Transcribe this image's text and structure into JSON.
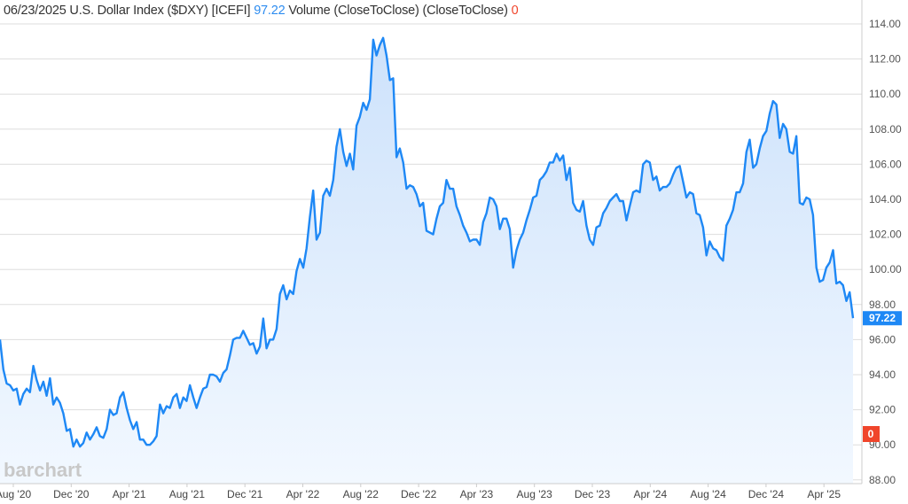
{
  "header": {
    "date": "06/23/2025",
    "name": "U.S. Dollar Index ($DXY) [ICEFI]",
    "last": "97.22",
    "study": "Volume (CloseToClose)  (CloseToClose)",
    "volume": "0"
  },
  "watermark": "barchart",
  "colors": {
    "line": "#1e88f5",
    "fill_top": "#cde2fb",
    "fill_bottom": "#f2f8ff",
    "price_tag": "#1e88f5",
    "volume_tag": "#f0452b",
    "grid": "#dddddd"
  },
  "chart_data": {
    "type": "area",
    "title": "U.S. Dollar Index ($DXY)",
    "xlabel": "",
    "ylabel": "",
    "ylim": [
      88,
      114
    ],
    "y_ticks": [
      "114.00",
      "112.00",
      "110.00",
      "108.00",
      "106.00",
      "104.00",
      "102.00",
      "100.00",
      "98.00",
      "96.00",
      "94.00",
      "92.00",
      "90.00",
      "88.00"
    ],
    "x_ticks": [
      "Aug '20",
      "Dec '20",
      "Apr '21",
      "Aug '21",
      "Dec '21",
      "Apr '22",
      "Aug '22",
      "Dec '22",
      "Apr '23",
      "Aug '23",
      "Dec '23",
      "Apr '24",
      "Aug '24",
      "Dec '24",
      "Apr '25"
    ],
    "x_range": [
      "2020-07",
      "2025-06-23"
    ],
    "frequency": "weekly",
    "last_value_label": "97.22",
    "volume_label": "0",
    "grid": true,
    "values": [
      96.0,
      94.3,
      93.5,
      93.4,
      93.1,
      93.2,
      92.3,
      92.9,
      93.2,
      93.0,
      94.5,
      93.7,
      93.1,
      93.6,
      92.8,
      93.8,
      92.3,
      92.7,
      92.4,
      91.8,
      90.8,
      90.9,
      89.9,
      90.3,
      89.9,
      90.1,
      90.7,
      90.3,
      90.6,
      91.0,
      90.5,
      90.4,
      90.9,
      92.0,
      91.7,
      91.8,
      92.7,
      93.0,
      92.1,
      91.4,
      90.9,
      91.3,
      90.3,
      90.3,
      90.0,
      90.0,
      90.2,
      90.5,
      92.3,
      91.8,
      92.2,
      92.1,
      92.7,
      92.9,
      92.1,
      92.7,
      92.5,
      93.4,
      92.7,
      92.1,
      92.7,
      93.2,
      93.3,
      94.0,
      94.0,
      93.9,
      93.6,
      94.1,
      94.3,
      95.1,
      96.0,
      96.1,
      96.1,
      96.5,
      96.1,
      95.7,
      95.8,
      95.2,
      95.6,
      97.2,
      95.5,
      96.0,
      96.0,
      96.6,
      98.6,
      99.1,
      98.3,
      98.8,
      98.6,
      99.9,
      100.6,
      100.1,
      101.2,
      103.0,
      104.5,
      101.7,
      102.1,
      104.2,
      104.6,
      104.2,
      105.1,
      107.0,
      108.0,
      106.7,
      105.9,
      106.6,
      105.7,
      108.2,
      108.7,
      109.5,
      109.1,
      109.7,
      113.1,
      112.2,
      112.8,
      113.2,
      112.2,
      110.8,
      110.9,
      106.4,
      106.9,
      106.1,
      104.6,
      104.8,
      104.7,
      104.3,
      103.6,
      103.8,
      102.2,
      102.1,
      102.0,
      102.9,
      103.6,
      103.8,
      105.1,
      104.6,
      104.6,
      103.6,
      103.1,
      102.5,
      102.1,
      101.6,
      101.7,
      101.7,
      101.4,
      102.7,
      103.2,
      104.1,
      104.0,
      103.6,
      102.3,
      102.9,
      102.9,
      102.3,
      100.1,
      101.1,
      101.7,
      102.1,
      102.8,
      103.4,
      104.1,
      104.2,
      105.1,
      105.3,
      105.6,
      106.1,
      106.1,
      106.6,
      106.2,
      106.5,
      105.1,
      105.8,
      103.8,
      103.4,
      103.3,
      103.9,
      102.5,
      101.7,
      101.4,
      102.4,
      102.5,
      103.2,
      103.5,
      103.9,
      104.1,
      104.3,
      103.9,
      103.9,
      102.8,
      103.6,
      104.4,
      104.5,
      104.4,
      106.0,
      106.2,
      106.1,
      105.1,
      105.3,
      104.5,
      104.7,
      104.7,
      104.9,
      105.4,
      105.8,
      105.9,
      105.0,
      104.1,
      104.4,
      104.3,
      103.2,
      103.1,
      102.4,
      100.8,
      101.6,
      101.2,
      101.1,
      100.7,
      100.5,
      102.5,
      102.9,
      103.4,
      104.4,
      104.4,
      104.9,
      106.7,
      107.4,
      105.8,
      106.0,
      106.9,
      107.6,
      107.9,
      108.9,
      109.6,
      109.4,
      107.5,
      108.3,
      108.0,
      106.7,
      106.6,
      107.6,
      103.8,
      103.7,
      104.1,
      104.0,
      103.1,
      100.1,
      99.3,
      99.4,
      100.1,
      100.4,
      101.1,
      99.2,
      99.3,
      99.1,
      98.2,
      98.7,
      97.22
    ]
  }
}
